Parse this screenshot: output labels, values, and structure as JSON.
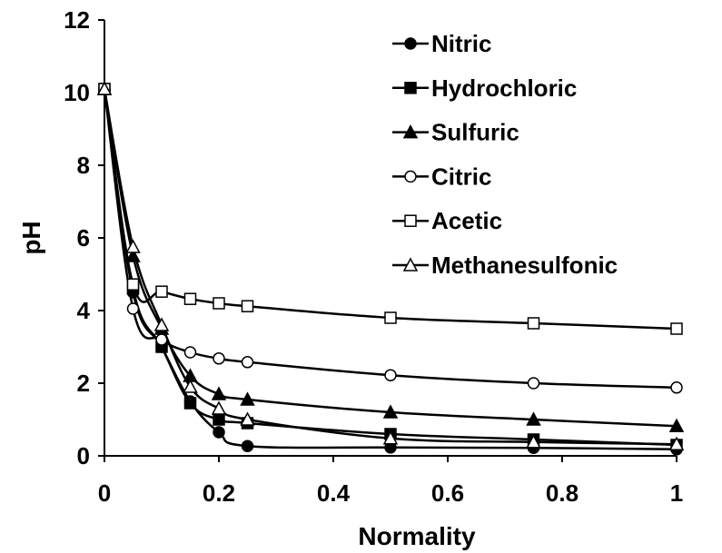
{
  "chart_data": {
    "type": "line",
    "xlabel": "Normality",
    "ylabel": "pH",
    "xlim": [
      0,
      1
    ],
    "ylim": [
      0,
      12
    ],
    "xticks": [
      "0",
      "0.2",
      "0.4",
      "0.6",
      "0.8",
      "1"
    ],
    "yticks": [
      "0",
      "2",
      "4",
      "6",
      "8",
      "10",
      "12"
    ],
    "grid": false,
    "legend_position": "top-right",
    "series": [
      {
        "name": "Nitric",
        "marker": "circle-filled",
        "x": [
          0,
          0.05,
          0.1,
          0.15,
          0.2,
          0.25,
          0.5,
          0.75,
          1
        ],
        "y": [
          10.1,
          4.5,
          3.0,
          1.5,
          0.65,
          0.27,
          0.23,
          0.22,
          0.18
        ]
      },
      {
        "name": "Hydrochloric",
        "marker": "square-filled",
        "x": [
          0,
          0.05,
          0.1,
          0.15,
          0.2,
          0.25,
          0.5,
          0.75,
          1
        ],
        "y": [
          10.1,
          4.6,
          3.0,
          1.45,
          1.0,
          0.9,
          0.6,
          0.45,
          0.3
        ]
      },
      {
        "name": "Sulfuric",
        "marker": "triangle-filled",
        "x": [
          0,
          0.05,
          0.1,
          0.15,
          0.2,
          0.25,
          0.5,
          0.75,
          1
        ],
        "y": [
          10.1,
          5.5,
          3.5,
          2.2,
          1.7,
          1.55,
          1.2,
          1.0,
          0.82
        ]
      },
      {
        "name": "Citric",
        "marker": "circle-open",
        "x": [
          0,
          0.05,
          0.1,
          0.15,
          0.2,
          0.25,
          0.5,
          0.75,
          1
        ],
        "y": [
          10.1,
          4.05,
          3.2,
          2.85,
          2.68,
          2.58,
          2.22,
          2.0,
          1.88
        ]
      },
      {
        "name": "Acetic",
        "marker": "square-open",
        "x": [
          0,
          0.05,
          0.1,
          0.15,
          0.2,
          0.25,
          0.5,
          0.75,
          1
        ],
        "y": [
          10.1,
          4.72,
          4.52,
          4.32,
          4.2,
          4.12,
          3.8,
          3.65,
          3.5
        ]
      },
      {
        "name": "Methanesulfonic",
        "marker": "triangle-open",
        "x": [
          0,
          0.05,
          0.1,
          0.15,
          0.2,
          0.25,
          0.5,
          0.75,
          1
        ],
        "y": [
          10.1,
          5.75,
          3.6,
          1.9,
          1.3,
          1.0,
          0.48,
          0.38,
          0.32
        ]
      }
    ]
  }
}
